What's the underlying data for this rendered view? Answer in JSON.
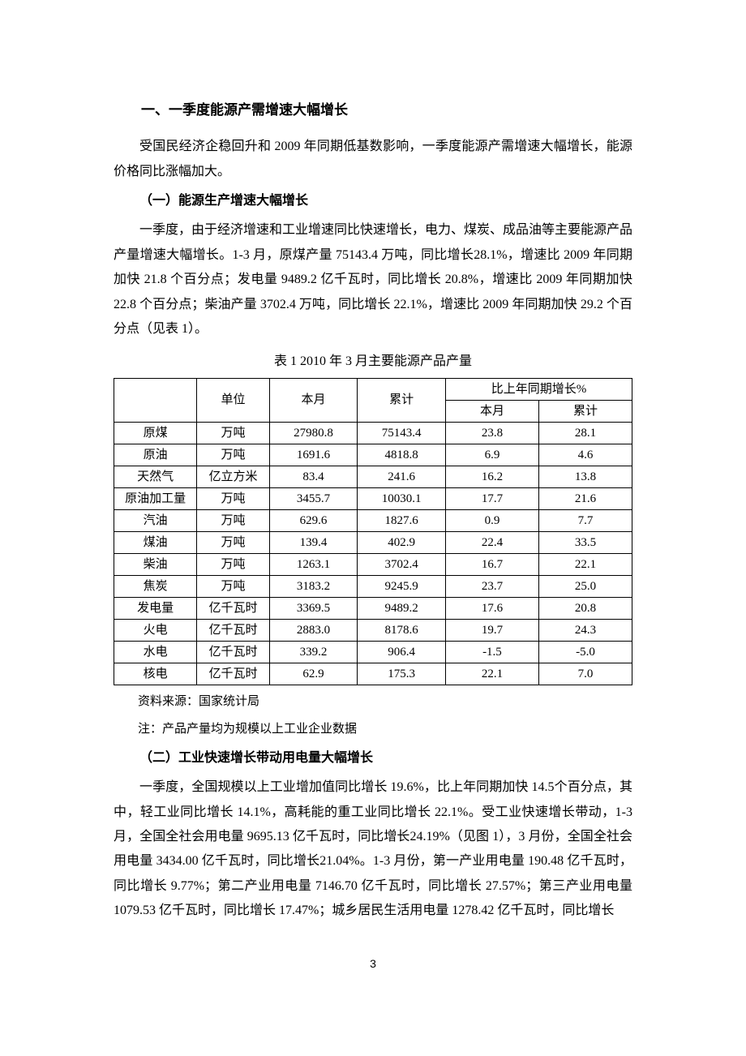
{
  "heading1": "一、一季度能源产需增速大幅增长",
  "para1": "受国民经济企稳回升和 2009 年同期低基数影响，一季度能源产需增速大幅增长，能源价格同比涨幅加大。",
  "heading2a": "（一）能源生产增速大幅增长",
  "para2": "一季度，由于经济增速和工业增速同比快速增长，电力、煤炭、成品油等主要能源产品产量增速大幅增长。1-3 月，原煤产量 75143.4 万吨，同比增长28.1%，增速比 2009 年同期加快 21.8 个百分点；发电量 9489.2 亿千瓦时，同比增长 20.8%，增速比 2009 年同期加快 22.8 个百分点；柴油产量 3702.4 万吨，同比增长 22.1%，增速比 2009 年同期加快 29.2 个百分点（见表 1）。",
  "table": {
    "caption": "表 1  2010 年 3 月主要能源产品产量",
    "header": {
      "c1": "",
      "c2": "单位",
      "c3": "本月",
      "c4": "累计",
      "c5_group": "比上年同期增长%",
      "c5a": "本月",
      "c5b": "累计"
    },
    "rows": [
      [
        "原煤",
        "万吨",
        "27980.8",
        "75143.4",
        "23.8",
        "28.1"
      ],
      [
        "原油",
        "万吨",
        "1691.6",
        "4818.8",
        "6.9",
        "4.6"
      ],
      [
        "天然气",
        "亿立方米",
        "83.4",
        "241.6",
        "16.2",
        "13.8"
      ],
      [
        "原油加工量",
        "万吨",
        "3455.7",
        "10030.1",
        "17.7",
        "21.6"
      ],
      [
        "汽油",
        "万吨",
        "629.6",
        "1827.6",
        "0.9",
        "7.7"
      ],
      [
        "煤油",
        "万吨",
        "139.4",
        "402.9",
        "22.4",
        "33.5"
      ],
      [
        "柴油",
        "万吨",
        "1263.1",
        "3702.4",
        "16.7",
        "22.1"
      ],
      [
        "焦炭",
        "万吨",
        "3183.2",
        "9245.9",
        "23.7",
        "25.0"
      ],
      [
        "发电量",
        "亿千瓦时",
        "3369.5",
        "9489.2",
        "17.6",
        "20.8"
      ],
      [
        "火电",
        "亿千瓦时",
        "2883.0",
        "8178.6",
        "19.7",
        "24.3"
      ],
      [
        "水电",
        "亿千瓦时",
        "339.2",
        "906.4",
        "-1.5",
        "-5.0"
      ],
      [
        "核电",
        "亿千瓦时",
        "62.9",
        "175.3",
        "22.1",
        "7.0"
      ]
    ],
    "note1": "资料来源：国家统计局",
    "note2": "注：产品产量均为规模以上工业企业数据"
  },
  "heading2b": "（二）工业快速增长带动用电量大幅增长",
  "para3": "一季度，全国规模以上工业增加值同比增长 19.6%，比上年同期加快 14.5个百分点，其中，轻工业同比增长 14.1%，高耗能的重工业同比增长 22.1%。受工业快速增长带动，1-3 月，全国全社会用电量 9695.13 亿千瓦时，同比增长24.19%（见图 1），3 月份，全国全社会用电量 3434.00 亿千瓦时，同比增长21.04%。1-3 月份，第一产业用电量 190.48 亿千瓦时，同比增长 9.77%；第二产业用电量 7146.70 亿千瓦时，同比增长 27.57%；第三产业用电量 1079.53 亿千瓦时，同比增长 17.47%；城乡居民生活用电量 1278.42 亿千瓦时，同比增长",
  "page_number": "3",
  "style": {
    "background_color": "#ffffff",
    "text_color": "#000000",
    "border_color": "#000000",
    "body_fontsize": 16,
    "table_fontsize": 15,
    "heading_fontsize": 17
  }
}
